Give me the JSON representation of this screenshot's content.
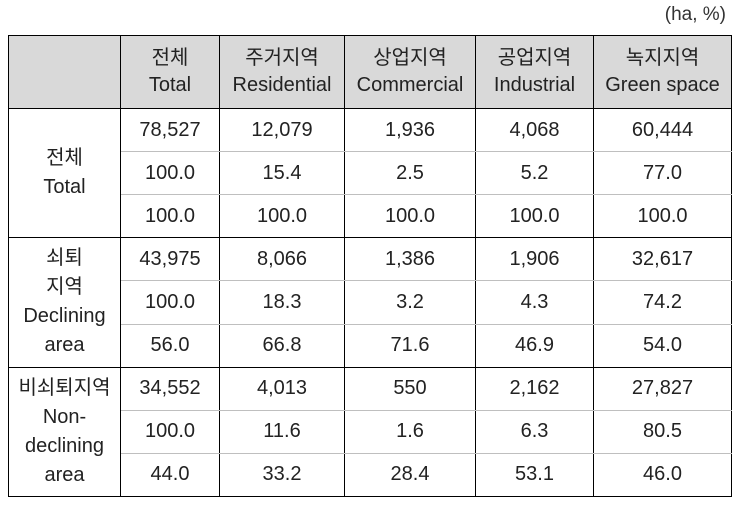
{
  "unit_note": "(ha, %)",
  "header": {
    "corner": "",
    "columns": [
      {
        "ko": "전체",
        "en": "Total"
      },
      {
        "ko": "주거지역",
        "en": "Residential"
      },
      {
        "ko": "상업지역",
        "en": "Commercial"
      },
      {
        "ko": "공업지역",
        "en": "Industrial"
      },
      {
        "ko": "녹지지역",
        "en": "Green space"
      }
    ]
  },
  "groups": [
    {
      "label_lines": [
        "전체",
        "Total"
      ],
      "rows": [
        [
          "78,527",
          "12,079",
          "1,936",
          "4,068",
          "60,444"
        ],
        [
          "100.0",
          "15.4",
          "2.5",
          "5.2",
          "77.0"
        ],
        [
          "100.0",
          "100.0",
          "100.0",
          "100.0",
          "100.0"
        ]
      ]
    },
    {
      "label_lines": [
        "쇠퇴",
        "지역",
        "Declining",
        "area"
      ],
      "rows": [
        [
          "43,975",
          "8,066",
          "1,386",
          "1,906",
          "32,617"
        ],
        [
          "100.0",
          "18.3",
          "3.2",
          "4.3",
          "74.2"
        ],
        [
          "56.0",
          "66.8",
          "71.6",
          "46.9",
          "54.0"
        ]
      ]
    },
    {
      "label_lines": [
        "비쇠퇴지역",
        "Non-",
        "declining",
        "area"
      ],
      "rows": [
        [
          "34,552",
          "4,013",
          "550",
          "2,162",
          "27,827"
        ],
        [
          "100.0",
          "11.6",
          "1.6",
          "6.3",
          "80.5"
        ],
        [
          "44.0",
          "33.2",
          "28.4",
          "53.1",
          "46.0"
        ]
      ]
    }
  ]
}
